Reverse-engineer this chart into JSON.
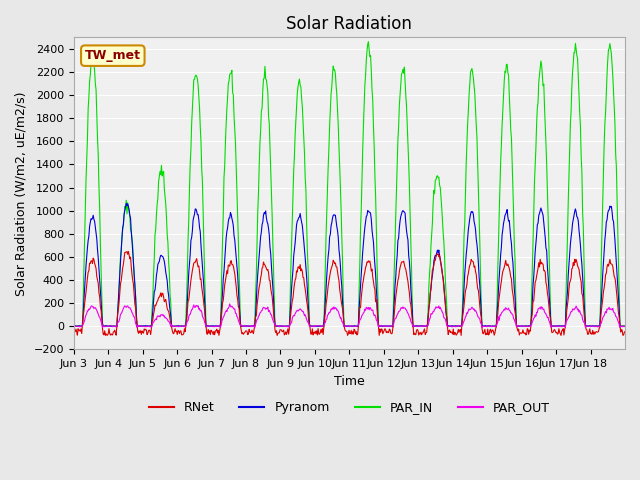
{
  "title": "Solar Radiation",
  "ylabel": "Solar Radiation (W/m2, uE/m2/s)",
  "xlabel": "Time",
  "ylim": [
    -200,
    2500
  ],
  "yticks": [
    -200,
    0,
    200,
    400,
    600,
    800,
    1000,
    1200,
    1400,
    1600,
    1800,
    2000,
    2200,
    2400
  ],
  "xtick_labels": [
    "Jun 3",
    "Jun 4",
    "Jun 5",
    "Jun 6",
    "Jun 7",
    "Jun 8",
    "Jun 9",
    "Jun 10",
    "Jun 11",
    "Jun 12",
    "Jun 13",
    "Jun 14",
    "Jun 15",
    "Jun 16",
    "Jun 17",
    "Jun 18"
  ],
  "annotation_text": "TW_met",
  "annotation_box_facecolor": "#ffffcc",
  "annotation_box_edgecolor": "#cc8800",
  "colors": {
    "RNet": "#dd0000",
    "Pyranom": "#0000dd",
    "PAR_IN": "#00dd00",
    "PAR_OUT": "#ee00ee"
  },
  "bg_color": "#e8e8e8",
  "plot_bg_color": "#f0f0f0",
  "n_days": 16,
  "pts_per_day": 48,
  "peaks": {
    "PAR_IN": [
      2350,
      1050,
      1350,
      2200,
      2200,
      2200,
      2100,
      2220,
      2440,
      2240,
      1320,
      2220,
      2240,
      2240,
      2420,
      2440
    ],
    "Pyranom": [
      950,
      1060,
      600,
      1010,
      960,
      980,
      950,
      960,
      1010,
      1000,
      640,
      990,
      990,
      1000,
      990,
      1040
    ],
    "RNet": [
      580,
      650,
      270,
      560,
      550,
      540,
      510,
      550,
      560,
      550,
      630,
      560,
      550,
      560,
      570,
      560
    ],
    "PAR_OUT": [
      170,
      175,
      95,
      175,
      170,
      160,
      140,
      160,
      160,
      160,
      165,
      155,
      155,
      155,
      160,
      155
    ]
  }
}
